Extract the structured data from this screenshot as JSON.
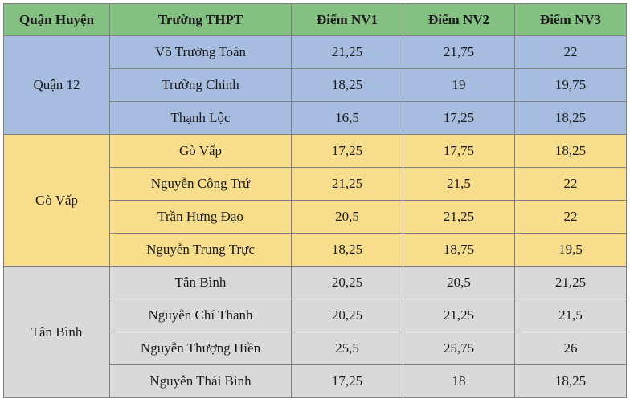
{
  "colors": {
    "header_bg": "#84c082",
    "group_bg": [
      "#a6bde0",
      "#f8dd8c",
      "#d9d9d9"
    ],
    "border": "#808080",
    "text": "#1a1a1a"
  },
  "columns": [
    "Quận Huyện",
    "Trường THPT",
    "Điểm NV1",
    "Điểm NV2",
    "Điểm NV3"
  ],
  "groups": [
    {
      "district": "Quận 12",
      "rows": [
        {
          "school": "Võ Trường Toàn",
          "nv1": "21,25",
          "nv2": "21,75",
          "nv3": "22"
        },
        {
          "school": "Trường Chinh",
          "nv1": "18,25",
          "nv2": "19",
          "nv3": "19,75"
        },
        {
          "school": "Thạnh Lộc",
          "nv1": "16,5",
          "nv2": "17,25",
          "nv3": "18,25"
        }
      ]
    },
    {
      "district": "Gò Vấp",
      "rows": [
        {
          "school": "Gò Vấp",
          "nv1": "17,25",
          "nv2": "17,75",
          "nv3": "18,25"
        },
        {
          "school": "Nguyễn Công Trứ",
          "nv1": "21,25",
          "nv2": "21,5",
          "nv3": "22"
        },
        {
          "school": "Trần Hưng Đạo",
          "nv1": "20,5",
          "nv2": "21,25",
          "nv3": "22"
        },
        {
          "school": "Nguyễn Trung Trực",
          "nv1": "18,25",
          "nv2": "18,75",
          "nv3": "19,5"
        }
      ]
    },
    {
      "district": "Tân Bình",
      "rows": [
        {
          "school": "Tân Bình",
          "nv1": "20,25",
          "nv2": "20,5",
          "nv3": "21,25"
        },
        {
          "school": "Nguyễn Chí Thanh",
          "nv1": "20,25",
          "nv2": "21,25",
          "nv3": "21,5"
        },
        {
          "school": "Nguyễn Thượng Hiền",
          "nv1": "25,5",
          "nv2": "25,75",
          "nv3": "26"
        },
        {
          "school": "Nguyễn Thái Bình",
          "nv1": "17,25",
          "nv2": "18",
          "nv3": "18,25"
        }
      ]
    }
  ]
}
